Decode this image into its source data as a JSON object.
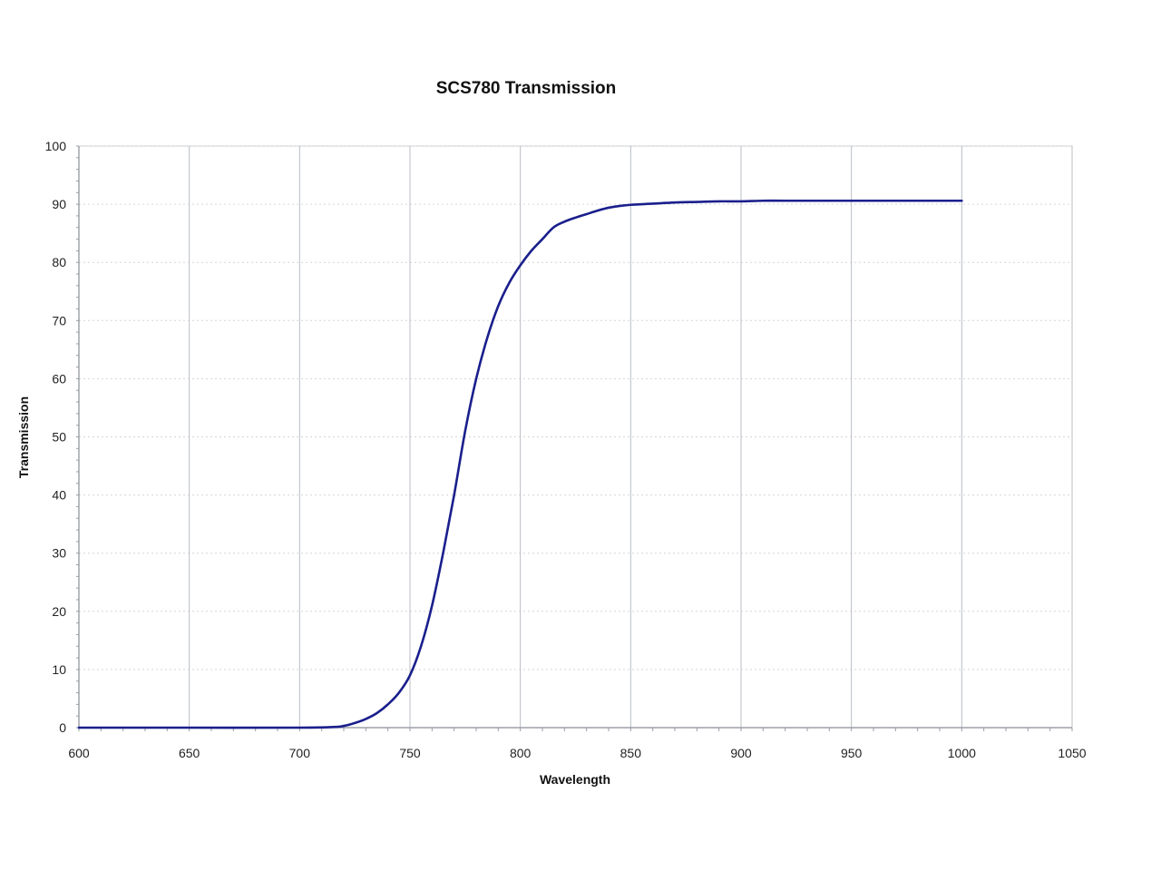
{
  "chart_data": {
    "type": "line",
    "title": "SCS780 Transmission",
    "xlabel": "Wavelength",
    "ylabel": "Transmission",
    "xlim": [
      600,
      1050
    ],
    "ylim": [
      0,
      100
    ],
    "x_ticks": [
      600,
      650,
      700,
      750,
      800,
      850,
      900,
      950,
      1000,
      1050
    ],
    "y_ticks": [
      0,
      10,
      20,
      30,
      40,
      50,
      60,
      70,
      80,
      90,
      100
    ],
    "grid": true,
    "legend": "none",
    "series": [
      {
        "color": "#1a1f8c",
        "x": [
          600,
          650,
          700,
          715,
          720,
          725,
          730,
          735,
          740,
          745,
          750,
          755,
          760,
          765,
          770,
          775,
          780,
          785,
          790,
          795,
          800,
          805,
          810,
          815,
          820,
          825,
          830,
          835,
          840,
          845,
          850,
          860,
          870,
          880,
          890,
          900,
          910,
          920,
          950,
          1000
        ],
        "y": [
          0,
          0,
          0,
          0.1,
          0.3,
          0.8,
          1.5,
          2.5,
          4.0,
          6.0,
          9.0,
          14.0,
          21.0,
          30.0,
          40.0,
          51.0,
          60.0,
          67.0,
          72.5,
          76.5,
          79.5,
          82.0,
          84.0,
          86.0,
          87.0,
          87.7,
          88.3,
          88.9,
          89.4,
          89.7,
          89.9,
          90.1,
          90.3,
          90.4,
          90.5,
          90.5,
          90.6,
          90.6,
          90.6,
          90.6
        ]
      }
    ]
  }
}
